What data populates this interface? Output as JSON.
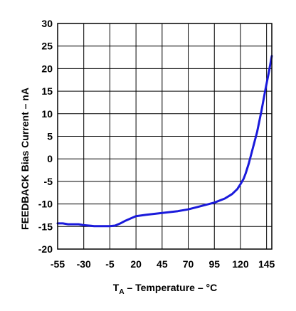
{
  "chart_data": {
    "type": "line",
    "xlabel": "T",
    "xlabel_sub": "A",
    "xlabel_rest": " – Temperature – °C",
    "ylabel": "FEEDBACK Bias Current – nA",
    "xlim": [
      -55,
      150
    ],
    "ylim": [
      -20,
      30
    ],
    "xticks": [
      -55,
      -30,
      -5,
      20,
      45,
      70,
      95,
      120,
      145
    ],
    "xtick_labels": [
      "-55",
      "-30",
      "-5",
      "20",
      "45",
      "70",
      "95",
      "120",
      "145"
    ],
    "yticks": [
      30,
      25,
      20,
      15,
      10,
      5,
      0,
      -5,
      -10,
      -15,
      -20
    ],
    "ytick_labels": [
      "30",
      "25",
      "20",
      "15",
      "10",
      "5",
      "0",
      "-5",
      "-10",
      "-15",
      "-20"
    ],
    "grid": true,
    "line_color": "#1a1adb",
    "series": [
      {
        "x": [
          -55,
          -50,
          -45,
          -40,
          -35,
          -30,
          -25,
          -20,
          -15,
          -10,
          -5,
          0,
          5,
          10,
          15,
          20,
          30,
          45,
          60,
          70,
          80,
          95,
          105,
          112,
          117,
          120,
          123,
          125,
          128,
          132,
          136,
          140,
          144,
          147,
          150
        ],
        "y": [
          -14.3,
          -14.3,
          -14.5,
          -14.5,
          -14.5,
          -14.7,
          -14.8,
          -14.9,
          -14.9,
          -14.9,
          -14.9,
          -14.8,
          -14.3,
          -13.7,
          -13.2,
          -12.7,
          -12.4,
          -12.0,
          -11.6,
          -11.2,
          -10.6,
          -9.7,
          -8.8,
          -7.8,
          -6.7,
          -5.6,
          -4.4,
          -3.2,
          -1.0,
          2.5,
          6.0,
          10.5,
          15.5,
          19.0,
          22.8
        ]
      }
    ]
  }
}
